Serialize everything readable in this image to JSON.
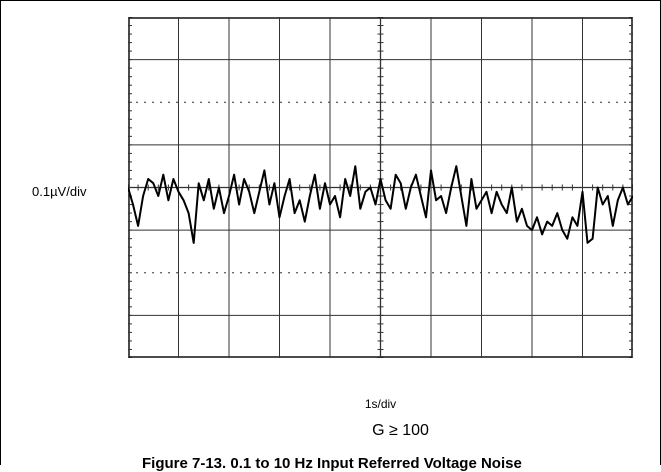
{
  "chart_data": {
    "type": "line",
    "title": "",
    "ylabel": "0.1µV/div",
    "xlabel": "1s/div",
    "annotation": "G ≥ 100",
    "caption": "Figure 7-13. 0.1 to 10 Hz Input Referred Voltage Noise",
    "x_divisions": 10,
    "y_divisions": 8,
    "xlim": [
      0,
      10
    ],
    "ylim": [
      -4,
      4
    ],
    "grid": true,
    "colors": {
      "background": "#ffffff",
      "grid": "#333333",
      "trace": "#000000"
    },
    "series": [
      {
        "x": [
          0.0,
          0.1,
          0.2,
          0.3,
          0.4,
          0.5,
          0.6,
          0.7,
          0.8,
          0.9,
          1.0,
          1.1,
          1.2,
          1.3,
          1.4,
          1.5,
          1.6,
          1.7,
          1.8,
          1.9,
          2.0,
          2.1,
          2.2,
          2.3,
          2.4,
          2.5,
          2.6,
          2.7,
          2.8,
          2.9,
          3.0,
          3.1,
          3.2,
          3.3,
          3.4,
          3.5,
          3.6,
          3.7,
          3.8,
          3.9,
          4.0,
          4.1,
          4.2,
          4.3,
          4.4,
          4.5,
          4.6,
          4.7,
          4.8,
          4.9,
          5.0,
          5.1,
          5.2,
          5.3,
          5.4,
          5.5,
          5.6,
          5.7,
          5.8,
          5.9,
          6.0,
          6.1,
          6.2,
          6.3,
          6.4,
          6.5,
          6.6,
          6.7,
          6.8,
          6.9,
          7.0,
          7.1,
          7.2,
          7.3,
          7.4,
          7.5,
          7.6,
          7.7,
          7.8,
          7.9,
          8.0,
          8.1,
          8.2,
          8.3,
          8.4,
          8.5,
          8.6,
          8.7,
          8.8,
          8.9,
          9.0,
          9.1,
          9.2,
          9.3,
          9.4,
          9.5,
          9.6,
          9.7,
          9.8,
          9.9,
          10.0
        ],
        "values": [
          0.0,
          -0.4,
          -0.9,
          -0.2,
          0.2,
          0.1,
          -0.2,
          0.3,
          -0.3,
          0.2,
          -0.1,
          -0.3,
          -0.6,
          -1.3,
          0.1,
          -0.3,
          0.2,
          -0.5,
          0.0,
          -0.6,
          -0.2,
          0.3,
          -0.4,
          0.2,
          -0.1,
          -0.6,
          -0.1,
          0.4,
          -0.4,
          0.1,
          -0.7,
          -0.2,
          0.2,
          -0.6,
          -0.3,
          -0.8,
          -0.2,
          0.3,
          -0.5,
          0.1,
          -0.4,
          -0.2,
          -0.7,
          0.2,
          -0.2,
          0.5,
          -0.5,
          -0.1,
          0.0,
          -0.4,
          0.2,
          -0.3,
          -0.5,
          0.3,
          0.1,
          -0.5,
          0.0,
          0.3,
          -0.2,
          -0.7,
          0.4,
          -0.3,
          -0.2,
          -0.6,
          0.0,
          0.5,
          -0.2,
          -0.9,
          0.2,
          -0.5,
          -0.3,
          -0.1,
          -0.6,
          -0.1,
          -0.4,
          -0.6,
          0.0,
          -0.8,
          -0.5,
          -0.9,
          -1.0,
          -0.7,
          -1.1,
          -0.8,
          -0.9,
          -0.6,
          -1.0,
          -1.2,
          -0.7,
          -0.9,
          -0.1,
          -1.3,
          -1.2,
          0.0,
          -0.4,
          -0.2,
          -0.9,
          -0.3,
          0.0,
          -0.4,
          -0.2
        ]
      }
    ]
  }
}
